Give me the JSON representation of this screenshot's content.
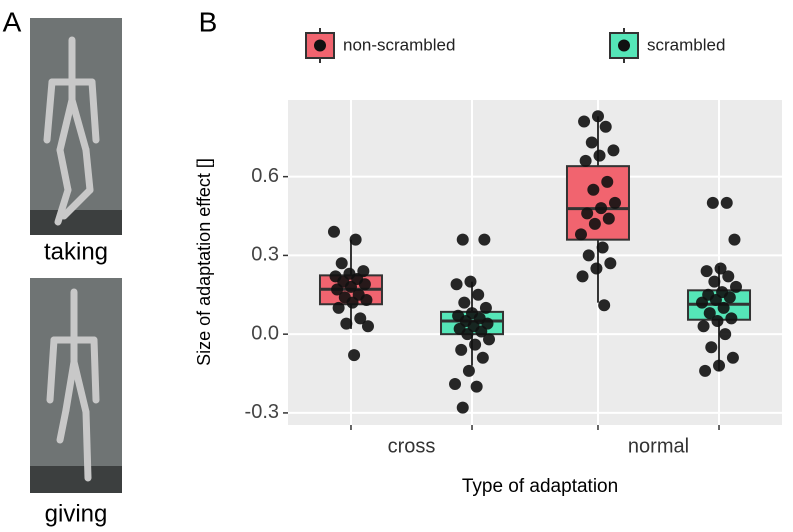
{
  "figure": {
    "panel_label": "A",
    "captions": [
      "taking",
      "giving"
    ]
  },
  "chart_data": {
    "type": "box",
    "panel_label": "B",
    "y_label": "Size of adaptation effect []",
    "x_label": "Type of adaptation",
    "categories": [
      "cross",
      "normal"
    ],
    "ylim": [
      -0.346,
      0.892
    ],
    "yticks": [
      {
        "value": -0.3,
        "label": "-0.3"
      },
      {
        "value": 0,
        "label": "0.0"
      },
      0.3,
      0.6
    ],
    "grid": true,
    "legend": "top",
    "series": [
      {
        "name": "non-scrambled",
        "color": "#f1646f",
        "boxes": [
          {
            "q1": 0.114,
            "median": 0.171,
            "q3": 0.224,
            "whislo": 0.02,
            "whishi": 0.36
          },
          {
            "q1": 0.36,
            "median": 0.478,
            "q3": 0.64,
            "whislo": 0.12,
            "whishi": 0.83
          }
        ],
        "points": [
          [
            0.39,
            0.36,
            0.27,
            0.24,
            0.23,
            0.22,
            0.21,
            0.2,
            0.19,
            0.18,
            0.17,
            0.15,
            0.14,
            0.13,
            0.12,
            0.1,
            0.06,
            0.04,
            0.03,
            -0.08
          ],
          [
            0.83,
            0.81,
            0.79,
            0.73,
            0.7,
            0.68,
            0.66,
            0.58,
            0.55,
            0.5,
            0.48,
            0.46,
            0.44,
            0.42,
            0.38,
            0.33,
            0.3,
            0.27,
            0.25,
            0.22,
            0.11
          ]
        ]
      },
      {
        "name": "scrambled",
        "color": "#55e6b8",
        "boxes": [
          {
            "q1": 0.0,
            "median": 0.05,
            "q3": 0.085,
            "whislo": -0.12,
            "whishi": 0.2
          },
          {
            "q1": 0.055,
            "median": 0.114,
            "q3": 0.167,
            "whislo": -0.14,
            "whishi": 0.26
          }
        ],
        "points": [
          [
            0.36,
            0.36,
            0.2,
            0.19,
            0.15,
            0.12,
            0.1,
            0.08,
            0.07,
            0.06,
            0.05,
            0.04,
            0.03,
            0.02,
            0.01,
            0.0,
            -0.02,
            -0.04,
            -0.06,
            -0.09,
            -0.14,
            -0.19,
            -0.2,
            -0.28
          ],
          [
            0.5,
            0.5,
            0.36,
            0.25,
            0.24,
            0.22,
            0.2,
            0.18,
            0.16,
            0.15,
            0.14,
            0.13,
            0.12,
            0.1,
            0.08,
            0.06,
            0.05,
            0.03,
            0.0,
            -0.05,
            -0.09,
            -0.12,
            -0.14
          ]
        ]
      }
    ]
  }
}
